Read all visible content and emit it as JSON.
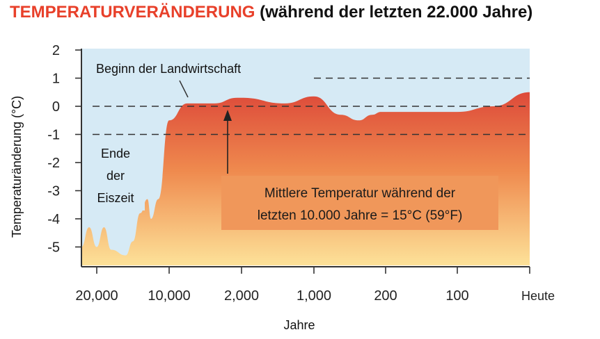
{
  "title": {
    "main": "TEMPERATURVERÄNDERUNG",
    "sub": "(während der letzten 22.000 Jahre)"
  },
  "colors": {
    "title_accent": "#e8402a",
    "sky": "#d6eaf5",
    "fill_top": "#dd4a3a",
    "fill_mid": "#ef8a4e",
    "fill_bottom": "#fde39a",
    "callout": "#f0975a"
  },
  "chart_data": {
    "type": "area",
    "title": "TEMPERATURVERÄNDERUNG (während der letzten 22.000 Jahre)",
    "xlabel": "Jahre",
    "ylabel": "Temperaturänderung (°C)",
    "ylim": [
      -5.5,
      2
    ],
    "yticks": [
      "2",
      "1",
      "0",
      "-1",
      "-2",
      "-3",
      "-4",
      "-5"
    ],
    "xticks": [
      "20,000",
      "10,000",
      "2,000",
      "1,000",
      "200",
      "100",
      "Heute"
    ],
    "x_scale": "nonlinear (compressed toward present)",
    "reference_lines": [
      {
        "y": 0,
        "style": "dashed"
      },
      {
        "y": -1,
        "style": "dashed"
      },
      {
        "y": 1,
        "style": "dashed",
        "from": "1,000"
      }
    ],
    "points": [
      [
        "22,000",
        -5.0
      ],
      [
        "21,000",
        -4.3
      ],
      [
        "20,000",
        -5.0
      ],
      [
        "19,000",
        -4.3
      ],
      [
        "18,000",
        -5.1
      ],
      [
        "16,000",
        -5.3
      ],
      [
        "15,000",
        -4.8
      ],
      [
        "14,000",
        -3.8
      ],
      [
        "13,000",
        -3.3
      ],
      [
        "12,500",
        -4.0
      ],
      [
        "11,500",
        -3.3
      ],
      [
        "10,000",
        -0.5
      ],
      [
        "8,000",
        0.1
      ],
      [
        "5,000",
        0.1
      ],
      [
        "2,500",
        0.3
      ],
      [
        "2,000",
        0.3
      ],
      [
        "1,400",
        0.1
      ],
      [
        "1,000",
        0.35
      ],
      [
        "700",
        -0.3
      ],
      [
        "500",
        -0.5
      ],
      [
        "350",
        -0.3
      ],
      [
        "250",
        -0.2
      ],
      [
        "200",
        -0.2
      ],
      [
        "100",
        -0.2
      ],
      [
        "50",
        0.0
      ],
      [
        "Heute",
        0.5
      ]
    ],
    "annotations": {
      "agriculture": "Beginn der Landwirtschaft",
      "ice_age": [
        "Ende",
        "der",
        "Eiszeit"
      ],
      "callout": [
        "Mittlere Temperatur während der",
        "letzten 10.000 Jahre = 15°C (59°F)"
      ]
    }
  }
}
